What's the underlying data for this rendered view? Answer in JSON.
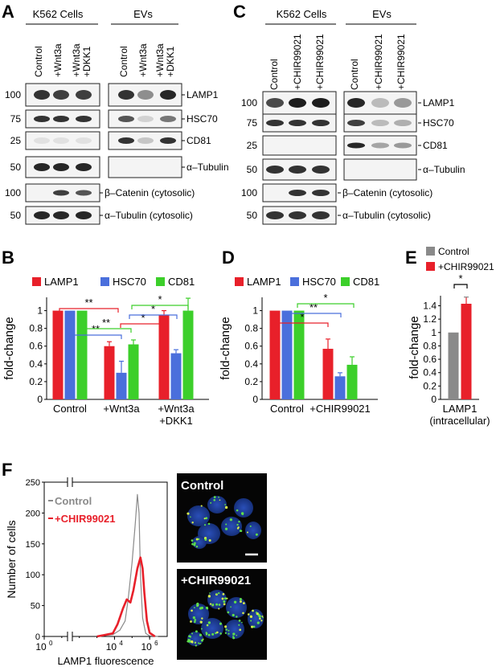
{
  "panels": {
    "A": "A",
    "B": "B",
    "C": "C",
    "D": "D",
    "E": "E",
    "F": "F"
  },
  "panelA": {
    "groups": [
      "K562 Cells",
      "EVs"
    ],
    "lanes": [
      "Control",
      "+Wnt3a",
      "+Wnt3a\n+DKK1"
    ],
    "row_labels": [
      "LAMP1",
      "HSC70",
      "CD81",
      "α–Tubulin",
      "β–Catenin (cytosolic)",
      "α–Tubulin (cytosolic)"
    ],
    "mw": [
      "100",
      "75",
      "25",
      "50",
      "100",
      "50"
    ]
  },
  "panelC": {
    "groups": [
      "K562 Cells",
      "EVs"
    ],
    "lanes": [
      "Control",
      "+CHIR99021",
      "+CHIR99021"
    ],
    "row_labels": [
      "LAMP1",
      "HSC70",
      "CD81",
      "α–Tubulin",
      "β–Catenin (cytosolic)",
      "α–Tubulin (cytosolic)"
    ],
    "mw": [
      "100",
      "75",
      "25",
      "50",
      "100",
      "50"
    ]
  },
  "colors": {
    "LAMP1": "#e8202a",
    "HSC70": "#4a6fdc",
    "CD81": "#3ccf2a",
    "control_gray": "#8a8a8a"
  },
  "chart_data": [
    {
      "panel": "B",
      "type": "bar",
      "ylabel": "fold-change",
      "ylim": [
        0,
        1.15
      ],
      "yticks": [
        "0",
        "0.2",
        "0.4",
        "0.6",
        "0.8",
        "1"
      ],
      "categories": [
        "Control",
        "+Wnt3a",
        "+Wnt3a\n+DKK1"
      ],
      "series": [
        {
          "name": "LAMP1",
          "values": [
            1.0,
            0.6,
            0.95
          ],
          "err": [
            0,
            0.05,
            0.05
          ]
        },
        {
          "name": "HSC70",
          "values": [
            1.0,
            0.3,
            0.52
          ],
          "err": [
            0,
            0.13,
            0.04
          ]
        },
        {
          "name": "CD81",
          "values": [
            1.0,
            0.62,
            1.0
          ],
          "err": [
            0,
            0.05,
            0.14
          ]
        }
      ],
      "significance": [
        "**",
        "**",
        "**",
        "*",
        "*",
        "*"
      ]
    },
    {
      "panel": "D",
      "type": "bar",
      "ylabel": "fold-change",
      "ylim": [
        0,
        1.15
      ],
      "yticks": [
        "0",
        "0.2",
        "0.4",
        "0.6",
        "0.8",
        "1"
      ],
      "categories": [
        "Control",
        "+CHIR99021"
      ],
      "series": [
        {
          "name": "LAMP1",
          "values": [
            1.0,
            0.57
          ],
          "err": [
            0,
            0.11
          ]
        },
        {
          "name": "HSC70",
          "values": [
            1.0,
            0.26
          ],
          "err": [
            0,
            0.04
          ]
        },
        {
          "name": "CD81",
          "values": [
            1.0,
            0.39
          ],
          "err": [
            0,
            0.09
          ]
        }
      ],
      "significance": [
        "*",
        "**",
        "*"
      ]
    },
    {
      "panel": "E",
      "type": "bar",
      "ylabel": "fold-change",
      "ylim": [
        0,
        1.55
      ],
      "yticks": [
        "0",
        "0.2",
        "0.4",
        "0.6",
        "0.8",
        "1",
        "1.2",
        "1.4"
      ],
      "categories": [
        "LAMP1\n(intracellular)"
      ],
      "series": [
        {
          "name": "Control",
          "values": [
            1.0
          ],
          "err": [
            0
          ]
        },
        {
          "name": "+CHIR99021",
          "values": [
            1.43
          ],
          "err": [
            0.1
          ]
        }
      ],
      "significance": [
        "*"
      ]
    },
    {
      "panel": "F",
      "type": "line",
      "xlabel": "LAMP1 fluorescence",
      "ylabel": "Number of cells",
      "xscale": "log",
      "xticks": [
        "10^0",
        "10^4",
        "10^6"
      ],
      "yticks": [
        "0",
        "50",
        "100",
        "150",
        "200",
        "250"
      ],
      "ylim": [
        0,
        250
      ],
      "series": [
        {
          "name": "Control",
          "color": "#8a8a8a",
          "x": [
            1000,
            8000,
            20000,
            40000,
            60000,
            100000,
            150000,
            200000,
            250000,
            300000,
            400000,
            600000,
            1000000,
            3000000
          ],
          "y": [
            0,
            3,
            10,
            25,
            60,
            120,
            180,
            230,
            200,
            100,
            30,
            5,
            1,
            0
          ]
        },
        {
          "name": "+CHIR99021",
          "color": "#e8202a",
          "x": [
            1000,
            8000,
            15000,
            30000,
            50000,
            80000,
            120000,
            200000,
            300000,
            400000,
            500000,
            700000,
            1000000,
            2000000
          ],
          "y": [
            0,
            5,
            20,
            45,
            60,
            55,
            75,
            110,
            128,
            110,
            70,
            25,
            6,
            0
          ]
        }
      ]
    }
  ],
  "micrographs": {
    "top": "Control",
    "bottom": "+CHIR99021"
  }
}
